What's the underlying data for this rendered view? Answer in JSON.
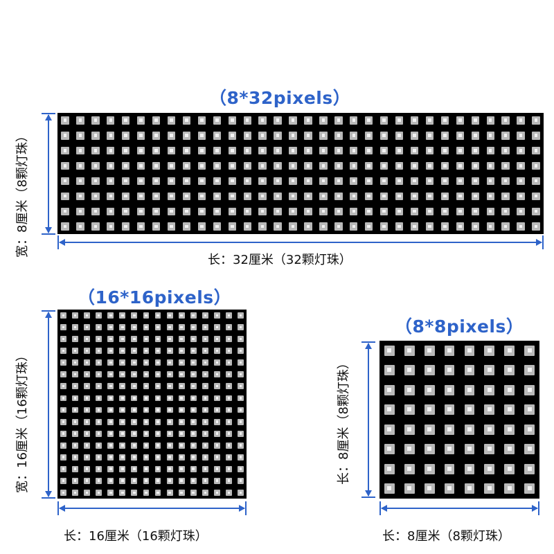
{
  "panels": [
    {
      "id": "p8x32",
      "title": "（8*32pixels）",
      "width_label": "宽：8厘米（8颗灯珠）",
      "length_label": "长：32厘米（32颗灯珠）",
      "rows": 8,
      "cols": 32
    },
    {
      "id": "p16x16",
      "title": "（16*16pixels）",
      "width_label": "宽：16厘米（16颗灯珠）",
      "length_label": "长：16厘米（16颗灯珠）",
      "rows": 16,
      "cols": 16
    },
    {
      "id": "p8x8",
      "title": "（8*8pixels）",
      "width_label": "长：8厘米（8颗灯珠）",
      "length_label": "长：8厘米（8颗灯珠）",
      "rows": 8,
      "cols": 8
    }
  ],
  "colors": {
    "title": "#2e63c9",
    "arrow": "#2e63c9",
    "panel": "#000000",
    "led": "#b9b9b9"
  }
}
